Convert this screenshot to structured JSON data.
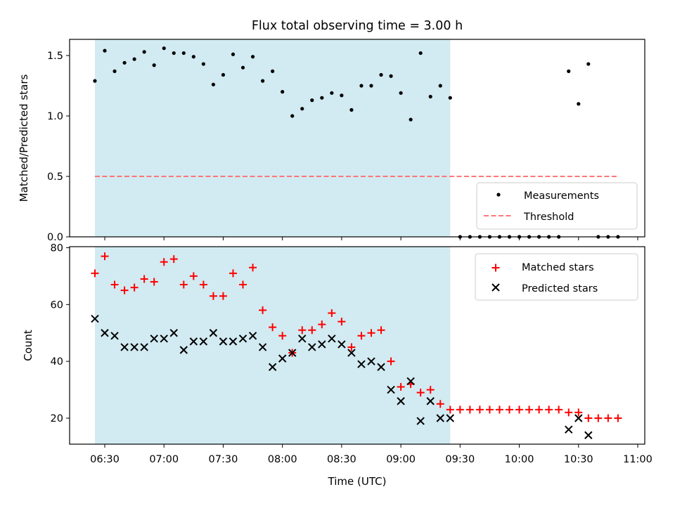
{
  "chart_data": [
    {
      "type": "scatter",
      "title": "Flux total observing time = 3.00 h",
      "xlabel": "",
      "ylabel": "Matched/Predicted stars",
      "ylim": [
        0,
        1.65
      ],
      "yticks": [
        "0.0",
        "0.5",
        "1.0",
        "1.5"
      ],
      "shaded_span": [
        "06:25",
        "09:25"
      ],
      "shaded_color": "#add8e6",
      "threshold": {
        "name": "Threshold",
        "value": 0.5,
        "x_range": [
          "06:25",
          "10:50"
        ],
        "color": "#ff7777"
      },
      "series": [
        {
          "name": "Measurements",
          "color": "#000000",
          "marker": "dot",
          "x": [
            "06:25",
            "06:30",
            "06:35",
            "06:40",
            "06:45",
            "06:50",
            "06:55",
            "07:00",
            "07:05",
            "07:10",
            "07:15",
            "07:20",
            "07:25",
            "07:30",
            "07:35",
            "07:40",
            "07:45",
            "07:50",
            "07:55",
            "08:00",
            "08:05",
            "08:10",
            "08:15",
            "08:20",
            "08:25",
            "08:30",
            "08:35",
            "08:40",
            "08:45",
            "08:50",
            "08:55",
            "09:00",
            "09:05",
            "09:10",
            "09:15",
            "09:20",
            "09:25",
            "09:30",
            "09:35",
            "09:40",
            "09:45",
            "09:50",
            "09:55",
            "10:00",
            "10:05",
            "10:10",
            "10:15",
            "10:20",
            "10:25",
            "10:30",
            "10:35",
            "10:40",
            "10:45",
            "10:50"
          ],
          "y": [
            1.29,
            1.54,
            1.37,
            1.44,
            1.47,
            1.53,
            1.42,
            1.56,
            1.52,
            1.52,
            1.49,
            1.43,
            1.26,
            1.34,
            1.51,
            1.4,
            1.49,
            1.29,
            1.37,
            1.2,
            1.0,
            1.06,
            1.13,
            1.15,
            1.19,
            1.17,
            1.05,
            1.25,
            1.25,
            1.34,
            1.33,
            1.19,
            0.97,
            1.52,
            1.16,
            1.25,
            1.15,
            0.0,
            0.0,
            0.0,
            0.0,
            0.0,
            0.0,
            0.0,
            0.0,
            0.0,
            0.0,
            0.0,
            1.37,
            1.1,
            1.43,
            0.0,
            0.0,
            0.0
          ]
        }
      ],
      "legend": [
        "Measurements",
        "Threshold"
      ],
      "legend_position": "lower-right"
    },
    {
      "type": "scatter",
      "title": "",
      "xlabel": "Time (UTC)",
      "ylabel": "Count",
      "ylim": [
        11,
        80
      ],
      "yticks": [
        "20",
        "40",
        "60",
        "80"
      ],
      "xticks": [
        "06:30",
        "07:00",
        "07:30",
        "08:00",
        "08:30",
        "09:00",
        "09:30",
        "10:00",
        "10:30",
        "11:00"
      ],
      "shaded_span": [
        "06:25",
        "09:25"
      ],
      "shaded_color": "#add8e6",
      "series": [
        {
          "name": "Matched stars",
          "color": "#ff0000",
          "marker": "plus",
          "x": [
            "06:25",
            "06:30",
            "06:35",
            "06:40",
            "06:45",
            "06:50",
            "06:55",
            "07:00",
            "07:05",
            "07:10",
            "07:15",
            "07:20",
            "07:25",
            "07:30",
            "07:35",
            "07:40",
            "07:45",
            "07:50",
            "07:55",
            "08:00",
            "08:05",
            "08:10",
            "08:15",
            "08:20",
            "08:25",
            "08:30",
            "08:35",
            "08:40",
            "08:45",
            "08:50",
            "08:55",
            "09:00",
            "09:05",
            "09:10",
            "09:15",
            "09:20",
            "09:25",
            "09:30",
            "09:35",
            "09:40",
            "09:45",
            "09:50",
            "09:55",
            "10:00",
            "10:05",
            "10:10",
            "10:15",
            "10:20",
            "10:25",
            "10:30",
            "10:35",
            "10:40",
            "10:45",
            "10:50"
          ],
          "y": [
            71,
            77,
            67,
            65,
            66,
            69,
            68,
            75,
            76,
            67,
            70,
            67,
            63,
            63,
            71,
            67,
            73,
            58,
            52,
            49,
            43,
            51,
            51,
            53,
            57,
            54,
            45,
            49,
            50,
            51,
            40,
            31,
            32,
            29,
            30,
            25,
            23,
            23,
            23,
            23,
            23,
            23,
            23,
            23,
            23,
            23,
            23,
            23,
            22,
            22,
            20,
            20,
            20,
            20
          ]
        },
        {
          "name": "Predicted stars",
          "color": "#000000",
          "marker": "x",
          "x": [
            "06:25",
            "06:30",
            "06:35",
            "06:40",
            "06:45",
            "06:50",
            "06:55",
            "07:00",
            "07:05",
            "07:10",
            "07:15",
            "07:20",
            "07:25",
            "07:30",
            "07:35",
            "07:40",
            "07:45",
            "07:50",
            "07:55",
            "08:00",
            "08:05",
            "08:10",
            "08:15",
            "08:20",
            "08:25",
            "08:30",
            "08:35",
            "08:40",
            "08:45",
            "08:50",
            "08:55",
            "09:00",
            "09:05",
            "09:10",
            "09:15",
            "09:20",
            "09:25",
            "10:25",
            "10:30",
            "10:35"
          ],
          "y": [
            55,
            50,
            49,
            45,
            45,
            45,
            48,
            48,
            50,
            44,
            47,
            47,
            50,
            47,
            47,
            48,
            49,
            45,
            38,
            41,
            43,
            48,
            45,
            46,
            48,
            46,
            43,
            39,
            40,
            38,
            30,
            26,
            33,
            19,
            26,
            20,
            20,
            16,
            20,
            14
          ]
        }
      ],
      "legend": [
        "Matched stars",
        "Predicted stars"
      ],
      "legend_position": "upper-right"
    }
  ]
}
